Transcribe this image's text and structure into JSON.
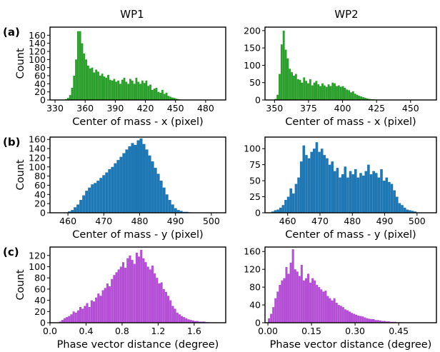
{
  "column_titles": [
    "WP1",
    "WP2"
  ],
  "row_labels": [
    "(a)",
    "(b)",
    "(c)"
  ],
  "colors": {
    "green": "#2ca02c",
    "blue": "#1f77b4",
    "violet": "#b44fd6"
  },
  "chart_data": [
    {
      "type": "bar",
      "name": "a-wp1",
      "color": "#2ca02c",
      "xlabel": "Center of mass - x (pixel)",
      "ylabel": "Count",
      "xlim": [
        325,
        500
      ],
      "ylim": [
        0,
        180
      ],
      "xticks": [
        330,
        360,
        390,
        420,
        450,
        480
      ],
      "yticks": [
        0,
        20,
        40,
        60,
        80,
        100,
        120,
        140,
        160
      ],
      "bin_start": 340,
      "bin_width": 2,
      "values": [
        2,
        5,
        12,
        30,
        60,
        100,
        170,
        170,
        140,
        115,
        100,
        85,
        78,
        80,
        68,
        75,
        70,
        60,
        65,
        58,
        55,
        62,
        50,
        48,
        52,
        45,
        48,
        40,
        50,
        55,
        45,
        40,
        52,
        48,
        40,
        55,
        45,
        40,
        48,
        42,
        48,
        35,
        38,
        25,
        28,
        30,
        20,
        18,
        25,
        15,
        18,
        10,
        8,
        6,
        5,
        3,
        2,
        1
      ]
    },
    {
      "type": "bar",
      "name": "a-wp2",
      "color": "#2ca02c",
      "xlabel": "Center of mass - x (pixel)",
      "ylabel": "",
      "xlim": [
        343,
        469
      ],
      "ylim": [
        0,
        210
      ],
      "xticks": [
        350,
        375,
        400,
        425,
        450
      ],
      "yticks": [
        0,
        50,
        100,
        150,
        200
      ],
      "bin_start": 350,
      "bin_width": 1.5,
      "values": [
        3,
        15,
        75,
        160,
        200,
        145,
        120,
        90,
        80,
        70,
        75,
        60,
        58,
        50,
        65,
        55,
        48,
        60,
        42,
        50,
        55,
        45,
        40,
        48,
        42,
        38,
        45,
        40,
        50,
        48,
        40,
        42,
        38,
        40,
        35,
        30,
        28,
        22,
        25,
        18,
        15,
        12,
        10,
        8,
        6,
        4,
        3,
        2,
        2,
        1
      ]
    },
    {
      "type": "bar",
      "name": "b-wp1",
      "color": "#1f77b4",
      "xlabel": "Center of mass - y (pixel)",
      "ylabel": "Count",
      "xlim": [
        455,
        504
      ],
      "ylim": [
        0,
        165
      ],
      "xticks": [
        460,
        470,
        480,
        490,
        500
      ],
      "yticks": [
        0,
        20,
        40,
        60,
        80,
        100,
        120,
        140,
        160
      ],
      "bin_start": 460,
      "bin_width": 0.8,
      "values": [
        3,
        6,
        12,
        18,
        28,
        38,
        48,
        55,
        62,
        65,
        70,
        76,
        82,
        88,
        95,
        100,
        108,
        115,
        122,
        130,
        138,
        145,
        152,
        148,
        158,
        162,
        150,
        138,
        125,
        112,
        98,
        85,
        70,
        55,
        40,
        28,
        18,
        10,
        6,
        4,
        2,
        2,
        1
      ]
    },
    {
      "type": "bar",
      "name": "b-wp2",
      "color": "#1f77b4",
      "xlabel": "Center of mass - y (pixel)",
      "ylabel": "",
      "xlim": [
        453,
        506
      ],
      "ylim": [
        0,
        118
      ],
      "xticks": [
        460,
        470,
        480,
        490,
        500
      ],
      "yticks": [
        0,
        25,
        50,
        75,
        100
      ],
      "bin_start": 455,
      "bin_width": 0.8,
      "values": [
        2,
        4,
        5,
        8,
        12,
        20,
        25,
        38,
        30,
        45,
        55,
        80,
        105,
        90,
        85,
        95,
        100,
        110,
        95,
        100,
        90,
        85,
        75,
        80,
        65,
        70,
        55,
        60,
        72,
        55,
        65,
        60,
        68,
        55,
        62,
        58,
        65,
        75,
        60,
        65,
        62,
        55,
        68,
        50,
        55,
        48,
        45,
        35,
        25,
        15,
        12,
        8,
        5,
        4,
        3,
        2
      ]
    },
    {
      "type": "bar",
      "name": "c-wp1",
      "color": "#b44fd6",
      "xlabel": "Phase vector distance (degree)",
      "ylabel": "Count",
      "xlim": [
        0,
        1.95
      ],
      "ylim": [
        0,
        135
      ],
      "xticks": [
        "0.0",
        "0.4",
        "0.8",
        "1.2",
        "1.6"
      ],
      "yticks": [
        0,
        20,
        40,
        60,
        80,
        100,
        120
      ],
      "bin_start": 0.1,
      "bin_width": 0.025,
      "values": [
        2,
        5,
        8,
        10,
        12,
        15,
        20,
        18,
        22,
        28,
        25,
        30,
        35,
        28,
        40,
        38,
        45,
        52,
        48,
        58,
        62,
        70,
        65,
        78,
        85,
        90,
        95,
        100,
        108,
        98,
        115,
        120,
        112,
        105,
        125,
        118,
        130,
        115,
        108,
        100,
        95,
        102,
        88,
        80,
        70,
        72,
        60,
        55,
        48,
        40,
        30,
        25,
        18,
        15,
        12,
        10,
        8,
        6,
        5,
        4,
        3,
        3,
        2,
        2,
        2,
        1,
        1
      ]
    },
    {
      "type": "bar",
      "name": "c-wp2",
      "color": "#b44fd6",
      "xlabel": "Phase vector distance (degree)",
      "ylabel": "",
      "xlim": [
        -0.01,
        0.58
      ],
      "ylim": [
        0,
        170
      ],
      "xticks": [
        "0.00",
        "0.15",
        "0.30",
        "0.45"
      ],
      "yticks": [
        0,
        40,
        80,
        120,
        160
      ],
      "bin_start": 0.0,
      "bin_width": 0.0075,
      "values": [
        10,
        20,
        35,
        55,
        70,
        85,
        95,
        100,
        125,
        110,
        135,
        165,
        120,
        115,
        105,
        130,
        95,
        100,
        110,
        90,
        100,
        95,
        85,
        80,
        75,
        70,
        72,
        60,
        55,
        50,
        55,
        45,
        40,
        38,
        35,
        30,
        28,
        25,
        22,
        20,
        18,
        16,
        15,
        14,
        12,
        10,
        9,
        8,
        8,
        6,
        6,
        5,
        4,
        4,
        3,
        3,
        2,
        2,
        2,
        1,
        1,
        1
      ]
    }
  ]
}
